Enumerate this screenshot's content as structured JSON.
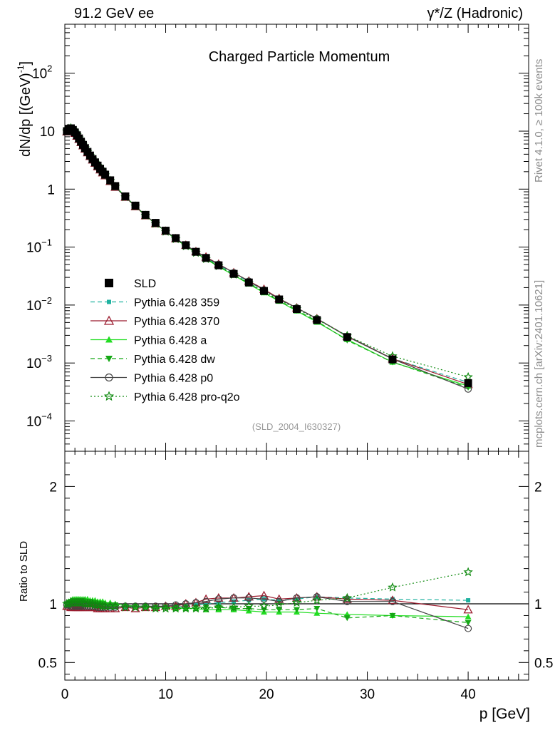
{
  "header": {
    "left": "91.2 GeV ee",
    "right": "γ*/Z (Hadronic)"
  },
  "side_labels": {
    "rivet": "Rivet 4.1.0, ≥ 100k events",
    "mcplots": "mcplots.cern.ch [arXiv:2401.10621]"
  },
  "chart_data": {
    "type": "line",
    "title": "Charged Particle Momentum",
    "analysis": "(SLD_2004_I630327)",
    "xlabel": "p [GeV]",
    "ylabel_main": "dN/dp [(GeV)",
    "ylabel_main_sup": "-1",
    "ylabel_main_end": "]",
    "ylabel_ratio": "Ratio to SLD",
    "xlim": [
      0,
      46
    ],
    "ylim_main": [
      3e-05,
      700
    ],
    "ylim_ratio": [
      0.35,
      2.3
    ],
    "yscale_main": "log",
    "xticks": [
      0,
      10,
      20,
      30,
      40
    ],
    "xtick_labels": [
      "0",
      "10",
      "20",
      "30",
      "40"
    ],
    "yticks_main": [
      {
        "value": 0.0001,
        "base": "10",
        "exp": "−4"
      },
      {
        "value": 0.001,
        "base": "10",
        "exp": "−3"
      },
      {
        "value": 0.01,
        "base": "10",
        "exp": "−2"
      },
      {
        "value": 0.1,
        "base": "10",
        "exp": "−1"
      },
      {
        "value": 1,
        "base": "1",
        "exp": ""
      },
      {
        "value": 10,
        "base": "10",
        "exp": ""
      },
      {
        "value": 100,
        "base": "10",
        "exp": "2"
      }
    ],
    "yticks_ratio": [
      {
        "value": 0.5,
        "label": "0.5"
      },
      {
        "value": 1,
        "label": "1"
      },
      {
        "value": 2,
        "label": "2"
      }
    ],
    "x": [
      0.2,
      0.4,
      0.6,
      0.8,
      1.0,
      1.2,
      1.4,
      1.6,
      1.8,
      2.0,
      2.25,
      2.5,
      2.75,
      3.0,
      3.25,
      3.5,
      3.75,
      4.0,
      4.5,
      5.0,
      6.0,
      7.0,
      8.0,
      9.0,
      10.0,
      11.0,
      12.0,
      13.0,
      14.0,
      15.25,
      16.75,
      18.25,
      19.75,
      21.25,
      23.0,
      25.0,
      28.0,
      32.5,
      40.0
    ],
    "series": [
      {
        "name": "SLD",
        "color": "#000000",
        "marker": "square",
        "line": "none",
        "values": [
          10.0,
          11.0,
          11.2,
          10.5,
          9.5,
          8.5,
          7.5,
          6.6,
          5.8,
          5.1,
          4.4,
          3.8,
          3.3,
          2.9,
          2.55,
          2.25,
          2.0,
          1.78,
          1.42,
          1.13,
          0.75,
          0.52,
          0.36,
          0.262,
          0.192,
          0.143,
          0.108,
          0.083,
          0.065,
          0.0485,
          0.0345,
          0.0245,
          0.0175,
          0.0125,
          0.0085,
          0.0055,
          0.0028,
          0.00115,
          0.00045
        ]
      },
      {
        "name": "Pythia 6.428 359",
        "color": "#20b2a0",
        "marker": "square-small",
        "line": "dashed",
        "ratio": [
          0.99,
          1.0,
          1.01,
          1.02,
          1.02,
          1.02,
          1.02,
          1.02,
          1.02,
          1.01,
          1.01,
          1.0,
          1.0,
          0.99,
          0.99,
          0.98,
          0.98,
          0.98,
          0.97,
          0.97,
          0.97,
          0.97,
          0.97,
          0.97,
          0.97,
          0.97,
          0.98,
          0.99,
          1.0,
          1.01,
          1.02,
          1.03,
          1.04,
          1.03,
          1.04,
          1.06,
          1.05,
          1.04,
          1.03
        ]
      },
      {
        "name": "Pythia 6.428 370",
        "color": "#9b1b2e",
        "marker": "triangle-open",
        "line": "solid",
        "ratio": [
          0.98,
          0.98,
          0.97,
          0.97,
          0.97,
          0.97,
          0.97,
          0.97,
          0.97,
          0.97,
          0.97,
          0.97,
          0.97,
          0.97,
          0.96,
          0.96,
          0.96,
          0.96,
          0.96,
          0.96,
          0.97,
          0.96,
          0.97,
          0.97,
          0.98,
          0.98,
          1.0,
          1.01,
          1.04,
          1.05,
          1.05,
          1.06,
          1.07,
          1.04,
          1.05,
          1.06,
          1.04,
          1.03,
          0.95
        ]
      },
      {
        "name": "Pythia 6.428 a",
        "color": "#22dd22",
        "marker": "triangle",
        "line": "solid",
        "ratio": [
          1.0,
          1.02,
          1.03,
          1.04,
          1.04,
          1.04,
          1.04,
          1.04,
          1.04,
          1.04,
          1.04,
          1.03,
          1.03,
          1.03,
          1.02,
          1.02,
          1.02,
          1.01,
          1.01,
          1.0,
          0.99,
          0.98,
          0.98,
          0.97,
          0.97,
          0.96,
          0.96,
          0.96,
          0.95,
          0.95,
          0.95,
          0.94,
          0.93,
          0.93,
          0.93,
          0.92,
          0.91,
          0.9,
          0.89
        ]
      },
      {
        "name": "Pythia 6.428 dw",
        "color": "#15a815",
        "marker": "triangle-down",
        "line": "dashed",
        "ratio": [
          1.0,
          1.01,
          1.02,
          1.03,
          1.03,
          1.03,
          1.03,
          1.03,
          1.03,
          1.02,
          1.02,
          1.02,
          1.01,
          1.01,
          1.0,
          1.0,
          1.0,
          0.99,
          0.99,
          0.99,
          0.98,
          0.98,
          0.98,
          0.97,
          0.97,
          0.97,
          0.97,
          0.97,
          0.97,
          0.97,
          0.96,
          0.96,
          0.95,
          0.95,
          0.95,
          0.96,
          0.88,
          0.9,
          0.84
        ]
      },
      {
        "name": "Pythia 6.428 p0",
        "color": "#444444",
        "marker": "circle-open",
        "line": "solid",
        "ratio": [
          0.99,
          0.99,
          0.98,
          0.98,
          0.98,
          0.98,
          0.98,
          0.98,
          0.98,
          0.98,
          0.98,
          0.98,
          0.98,
          0.98,
          0.97,
          0.97,
          0.97,
          0.97,
          0.97,
          0.97,
          0.98,
          0.98,
          0.98,
          0.98,
          0.98,
          0.99,
          1.0,
          1.01,
          1.02,
          1.04,
          1.05,
          1.05,
          1.04,
          1.02,
          1.05,
          1.06,
          1.02,
          1.02,
          0.79
        ]
      },
      {
        "name": "Pythia 6.428 pro-q2o",
        "color": "#0e8a0e",
        "marker": "star-open",
        "line": "dotted",
        "ratio": [
          1.0,
          1.0,
          1.01,
          1.01,
          1.01,
          1.01,
          1.01,
          1.01,
          1.01,
          1.0,
          1.0,
          1.0,
          1.0,
          0.99,
          0.99,
          0.99,
          0.98,
          0.98,
          0.98,
          0.98,
          0.97,
          0.97,
          0.97,
          0.96,
          0.96,
          0.96,
          0.96,
          0.96,
          0.96,
          0.97,
          0.97,
          0.98,
          0.98,
          0.99,
          1.01,
          1.03,
          1.05,
          1.14,
          1.27
        ]
      }
    ],
    "ratio_errors": {
      "SLD_band_fraction_last": 0.06
    }
  }
}
